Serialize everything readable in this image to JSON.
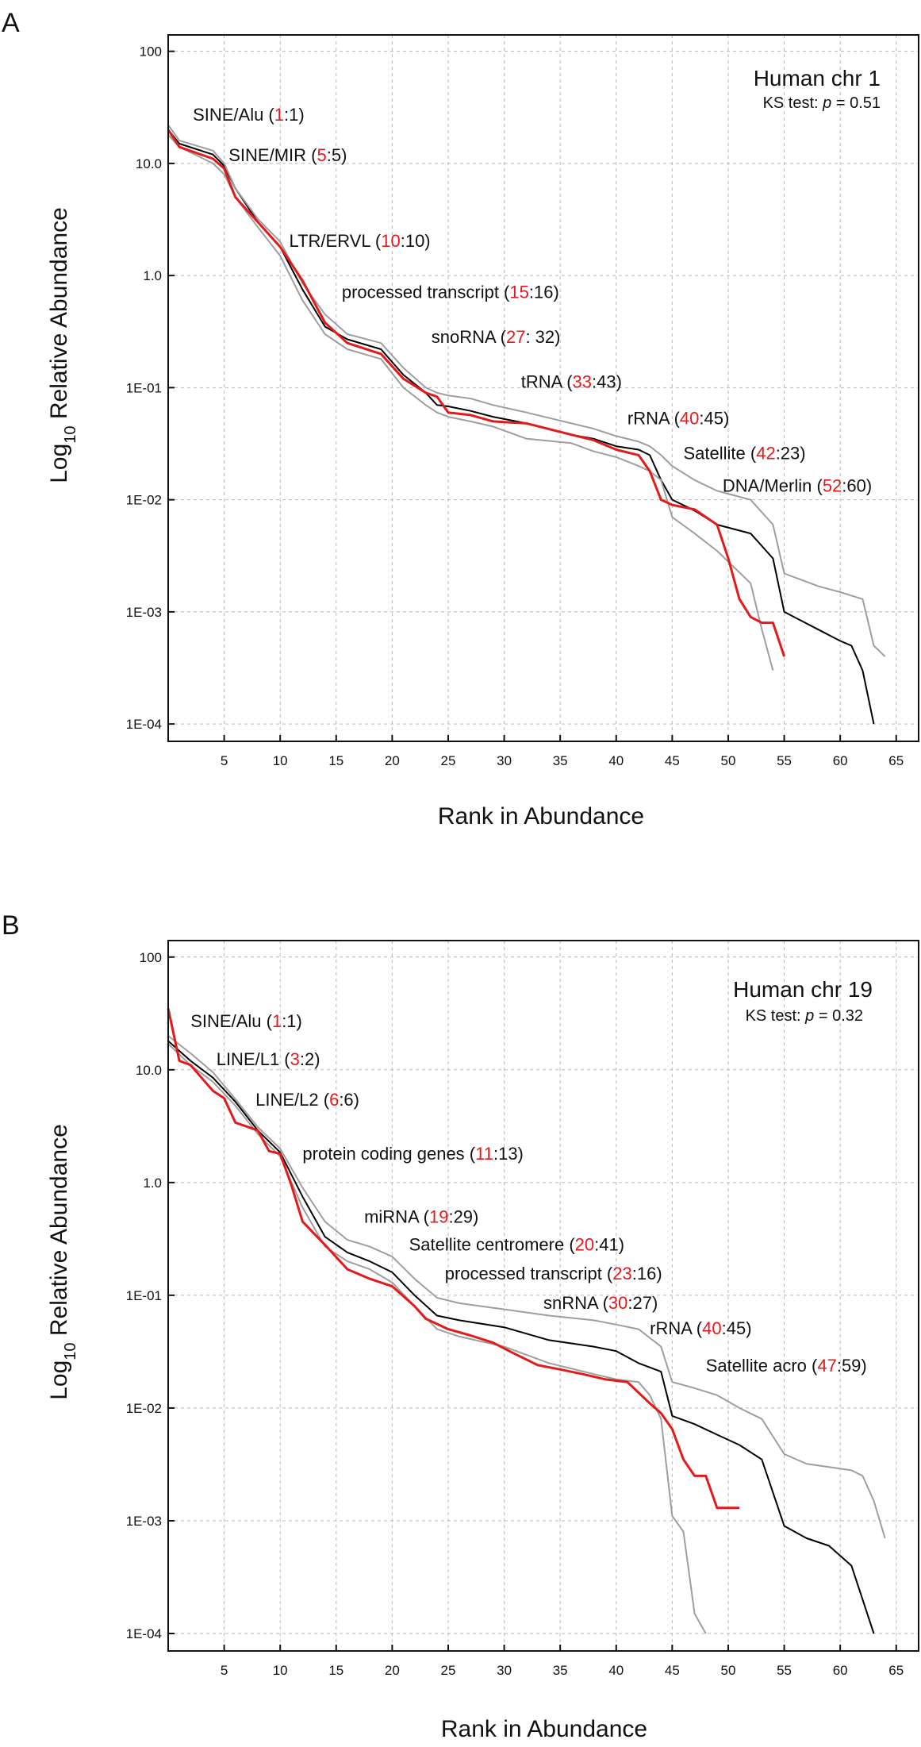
{
  "chart_data": [
    {
      "panel_label": "A",
      "type": "line",
      "title": "Human chr 1",
      "ks_prefix": "KS test: ",
      "ks_var": "p",
      "ks_value": " = 0.51",
      "xlabel": "Rank in Abundance",
      "ylabel_prefix": "Log",
      "ylabel_sub": "10",
      "ylabel_suffix": " Relative Abundance",
      "y_log_scale": true,
      "xlim": [
        0,
        67
      ],
      "ylim": [
        7e-05,
        140
      ],
      "x_ticks": [
        5,
        10,
        15,
        20,
        25,
        30,
        35,
        40,
        45,
        50,
        55,
        60,
        65
      ],
      "y_ticks": [
        {
          "value": 100,
          "label": "100"
        },
        {
          "value": 10,
          "label": "10.0"
        },
        {
          "value": 1,
          "label": "1.0"
        },
        {
          "value": 0.1,
          "label": "1E-01"
        },
        {
          "value": 0.01,
          "label": "1E-02"
        },
        {
          "value": 0.001,
          "label": "1E-03"
        },
        {
          "value": 0.0001,
          "label": "1E-04"
        }
      ],
      "grid": true,
      "annotations": [
        {
          "pre": "SINE/Alu (",
          "red": "1",
          "post": ":1)",
          "x": 2.2,
          "y": 24
        },
        {
          "pre": "SINE/MIR (",
          "red": "5",
          "post": ":5)",
          "x": 5.4,
          "y": 10.5
        },
        {
          "pre": "LTR/ERVL (",
          "red": "10",
          "post": ":10)",
          "x": 10.8,
          "y": 1.8
        },
        {
          "pre": "processed transcript (",
          "red": "15",
          "post": ":16)",
          "x": 15.5,
          "y": 0.63
        },
        {
          "pre": "snoRNA (",
          "red": "27",
          "post": ": 32)",
          "x": 23.5,
          "y": 0.25
        },
        {
          "pre": "tRNA (",
          "red": "33",
          "post": ":43)",
          "x": 31.5,
          "y": 0.1
        },
        {
          "pre": "rRNA (",
          "red": "40",
          "post": ":45)",
          "x": 41,
          "y": 0.047
        },
        {
          "pre": "Satellite (",
          "red": "42",
          "post": ":23)",
          "x": 46,
          "y": 0.023
        },
        {
          "pre": "DNA/Merlin (",
          "red": "52",
          "post": ":60)",
          "x": 49.5,
          "y": 0.0118
        }
      ],
      "series": [
        {
          "color": "#e31a1c",
          "x": [
            0,
            1,
            4,
            5,
            6,
            8,
            10,
            12,
            14,
            16,
            19,
            21,
            23,
            24,
            25,
            27,
            29,
            32,
            36,
            38,
            40,
            42,
            43,
            44,
            45,
            47,
            49,
            50,
            51,
            52,
            53,
            54,
            55
          ],
          "y": [
            20,
            14,
            11,
            9,
            5,
            3,
            1.8,
            0.9,
            0.38,
            0.25,
            0.2,
            0.12,
            0.09,
            0.083,
            0.06,
            0.057,
            0.05,
            0.048,
            0.038,
            0.034,
            0.028,
            0.025,
            0.018,
            0.01,
            0.009,
            0.0082,
            0.006,
            0.003,
            0.0013,
            0.0009,
            0.0008,
            0.0008,
            0.0004
          ]
        },
        {
          "color": "#000000",
          "x": [
            0,
            1,
            4,
            5,
            6,
            8,
            10,
            12,
            14,
            16,
            19,
            21,
            23,
            24,
            25,
            27,
            29,
            32,
            36,
            38,
            40,
            42,
            43,
            44,
            45,
            47,
            49,
            52,
            54,
            55,
            58,
            60,
            61,
            62,
            63
          ],
          "y": [
            20,
            15,
            12,
            9.5,
            6,
            3,
            1.8,
            0.75,
            0.35,
            0.27,
            0.22,
            0.13,
            0.09,
            0.07,
            0.068,
            0.062,
            0.055,
            0.048,
            0.038,
            0.035,
            0.03,
            0.028,
            0.025,
            0.015,
            0.01,
            0.008,
            0.006,
            0.005,
            0.003,
            0.001,
            0.0007,
            0.00055,
            0.0005,
            0.0003,
            0.0001
          ]
        },
        {
          "color": "#9e9e9e",
          "x": [
            0,
            1,
            4,
            5,
            6,
            8,
            10,
            12,
            14,
            16,
            19,
            21,
            23,
            24,
            25,
            27,
            29,
            32,
            36,
            38,
            40,
            42,
            43,
            44,
            45,
            47,
            49,
            52,
            54,
            55,
            58,
            60,
            62,
            63,
            64
          ],
          "y": [
            22,
            16,
            13,
            10,
            6,
            3.2,
            2,
            0.85,
            0.45,
            0.3,
            0.25,
            0.15,
            0.1,
            0.09,
            0.085,
            0.08,
            0.07,
            0.06,
            0.048,
            0.043,
            0.037,
            0.033,
            0.03,
            0.025,
            0.02,
            0.015,
            0.012,
            0.01,
            0.006,
            0.0022,
            0.0017,
            0.0015,
            0.0013,
            0.0005,
            0.0004
          ]
        },
        {
          "color": "#9e9e9e",
          "x": [
            0,
            1,
            4,
            5,
            6,
            8,
            10,
            12,
            14,
            16,
            19,
            21,
            23,
            24,
            25,
            27,
            29,
            32,
            36,
            38,
            40,
            42,
            43,
            44,
            45,
            47,
            49,
            52,
            53,
            54
          ],
          "y": [
            18,
            14,
            10,
            8,
            5,
            2.7,
            1.5,
            0.6,
            0.3,
            0.22,
            0.18,
            0.1,
            0.07,
            0.06,
            0.055,
            0.05,
            0.045,
            0.035,
            0.032,
            0.027,
            0.024,
            0.02,
            0.018,
            0.015,
            0.007,
            0.005,
            0.0035,
            0.0018,
            0.0007,
            0.0003
          ]
        }
      ]
    },
    {
      "panel_label": "B",
      "type": "line",
      "title": "Human chr 19",
      "ks_prefix": "KS test: ",
      "ks_var": "p",
      "ks_value": " = 0.32",
      "xlabel": "Rank in Abundance",
      "ylabel_prefix": "Log",
      "ylabel_sub": "10",
      "ylabel_suffix": " Relative Abundance",
      "y_log_scale": true,
      "xlim": [
        0,
        67
      ],
      "ylim": [
        7e-05,
        140
      ],
      "x_ticks": [
        5,
        10,
        15,
        20,
        25,
        30,
        35,
        40,
        45,
        50,
        55,
        60,
        65
      ],
      "y_ticks": [
        {
          "value": 100,
          "label": "100"
        },
        {
          "value": 10,
          "label": "10.0"
        },
        {
          "value": 1,
          "label": "1.0"
        },
        {
          "value": 0.1,
          "label": "1E-01"
        },
        {
          "value": 0.01,
          "label": "1E-02"
        },
        {
          "value": 0.001,
          "label": "1E-03"
        },
        {
          "value": 0.0001,
          "label": "1E-04"
        }
      ],
      "grid": true,
      "annotations": [
        {
          "pre": "SINE/Alu (",
          "red": "1",
          "post": ":1)",
          "x": 2,
          "y": 24
        },
        {
          "pre": "LINE/L1 (",
          "red": "3",
          "post": ":2)",
          "x": 4.3,
          "y": 11
        },
        {
          "pre": "LINE/L2 (",
          "red": "6",
          "post": ":6)",
          "x": 7.8,
          "y": 4.8
        },
        {
          "pre": "protein coding genes (",
          "red": "11",
          "post": ":13)",
          "x": 12,
          "y": 1.6
        },
        {
          "pre": "miRNA (",
          "red": "19",
          "post": ":29)",
          "x": 17.5,
          "y": 0.44
        },
        {
          "pre": "Satellite centromere (",
          "red": "20",
          "post": ":41)",
          "x": 21.5,
          "y": 0.25
        },
        {
          "pre": "processed transcript (",
          "red": "23",
          "post": ":16)",
          "x": 24.7,
          "y": 0.138
        },
        {
          "pre": "snRNA (",
          "red": "30",
          "post": ":27)",
          "x": 33.5,
          "y": 0.076
        },
        {
          "pre": "rRNA (",
          "red": "40",
          "post": ":45)",
          "x": 43,
          "y": 0.045
        },
        {
          "pre": "Satellite acro (",
          "red": "47",
          "post": ":59)",
          "x": 48,
          "y": 0.021
        }
      ],
      "series": [
        {
          "color": "#e31a1c",
          "x": [
            0,
            1,
            2,
            4,
            5,
            6,
            8,
            9,
            10,
            11,
            12,
            14,
            16,
            18,
            20,
            22,
            23,
            25,
            27,
            29,
            31,
            33,
            35,
            37,
            39,
            41,
            43,
            44,
            45,
            46,
            47,
            48,
            49,
            50,
            51
          ],
          "y": [
            35,
            12,
            11,
            6.5,
            5.6,
            3.4,
            2.9,
            1.9,
            1.8,
            0.95,
            0.45,
            0.28,
            0.17,
            0.14,
            0.12,
            0.08,
            0.062,
            0.05,
            0.044,
            0.038,
            0.03,
            0.024,
            0.022,
            0.02,
            0.018,
            0.017,
            0.011,
            0.009,
            0.0065,
            0.0035,
            0.0025,
            0.0025,
            0.0013,
            0.0013,
            0.0013
          ]
        },
        {
          "color": "#000000",
          "x": [
            0,
            2,
            4,
            6,
            8,
            10,
            12,
            14,
            16,
            18,
            20,
            22,
            24,
            26,
            30,
            34,
            38,
            40,
            42,
            44,
            45,
            47,
            49,
            51,
            53,
            55,
            57,
            59,
            61,
            62,
            63
          ],
          "y": [
            18,
            12,
            8.5,
            5.2,
            2.9,
            1.85,
            0.75,
            0.33,
            0.24,
            0.2,
            0.16,
            0.1,
            0.066,
            0.06,
            0.052,
            0.04,
            0.035,
            0.032,
            0.025,
            0.021,
            0.0085,
            0.0072,
            0.0058,
            0.0047,
            0.0035,
            0.0009,
            0.0007,
            0.0006,
            0.0004,
            0.0002,
            0.0001
          ]
        },
        {
          "color": "#9e9e9e",
          "x": [
            0,
            2,
            4,
            6,
            8,
            10,
            12,
            14,
            16,
            18,
            20,
            22,
            24,
            26,
            30,
            34,
            38,
            40,
            42,
            44,
            45,
            47,
            49,
            51,
            53,
            55,
            57,
            59,
            61,
            62,
            63,
            64
          ],
          "y": [
            20,
            14,
            9.5,
            5.5,
            3.1,
            2,
            0.9,
            0.45,
            0.31,
            0.27,
            0.22,
            0.14,
            0.095,
            0.085,
            0.075,
            0.066,
            0.06,
            0.055,
            0.05,
            0.035,
            0.017,
            0.015,
            0.013,
            0.01,
            0.008,
            0.0039,
            0.0032,
            0.003,
            0.0028,
            0.0025,
            0.0015,
            0.0007
          ]
        },
        {
          "color": "#9e9e9e",
          "x": [
            0,
            2,
            4,
            6,
            8,
            10,
            12,
            14,
            16,
            18,
            20,
            22,
            24,
            26,
            30,
            34,
            38,
            40,
            42,
            43,
            44,
            45,
            46,
            47,
            48
          ],
          "y": [
            17,
            11,
            7.8,
            4.8,
            2.7,
            1.7,
            0.6,
            0.27,
            0.2,
            0.17,
            0.13,
            0.08,
            0.05,
            0.043,
            0.035,
            0.025,
            0.02,
            0.018,
            0.017,
            0.013,
            0.008,
            0.0011,
            0.0008,
            0.00015,
            0.0001
          ]
        }
      ]
    }
  ]
}
